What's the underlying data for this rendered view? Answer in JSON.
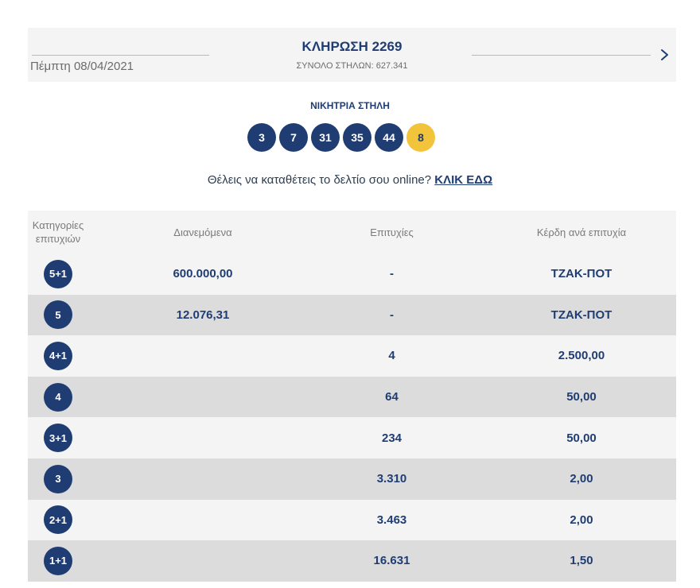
{
  "header": {
    "date": "Πέμπτη 08/04/2021",
    "title": "ΚΛΗΡΩΣΗ 2269",
    "subtitle": "ΣΥΝΟΛΟ ΣΤΗΛΩΝ: 627.341",
    "next_icon": "chevron-right-icon"
  },
  "winning": {
    "label": "ΝΙΚΗΤΡΙΑ ΣΤΗΛΗ",
    "numbers": [
      "3",
      "7",
      "31",
      "35",
      "44"
    ],
    "joker": "8"
  },
  "cta": {
    "text": "Θέλεις να καταθέτεις το δελτίο σου online?",
    "link": "ΚΛΙΚ ΕΔΩ"
  },
  "table": {
    "headers": {
      "category": "Κατηγορίες επιτυχιών",
      "distributed": "Διανεμόμενα",
      "winners": "Επιτυχίες",
      "prize": "Κέρδη ανά επιτυχία"
    },
    "rows": [
      {
        "category": "5+1",
        "distributed": "600.000,00",
        "winners": "-",
        "prize": "ΤΖΑΚ-ΠΟΤ"
      },
      {
        "category": "5",
        "distributed": "12.076,31",
        "winners": "-",
        "prize": "ΤΖΑΚ-ΠΟΤ"
      },
      {
        "category": "4+1",
        "distributed": "",
        "winners": "4",
        "prize": "2.500,00"
      },
      {
        "category": "4",
        "distributed": "",
        "winners": "64",
        "prize": "50,00"
      },
      {
        "category": "3+1",
        "distributed": "",
        "winners": "234",
        "prize": "50,00"
      },
      {
        "category": "3",
        "distributed": "",
        "winners": "3.310",
        "prize": "2,00"
      },
      {
        "category": "2+1",
        "distributed": "",
        "winners": "3.463",
        "prize": "2,00"
      },
      {
        "category": "1+1",
        "distributed": "",
        "winners": "16.631",
        "prize": "1,50"
      }
    ]
  },
  "colors": {
    "primary": "#1f3d73",
    "joker": "#f2c43c",
    "row_light": "#f4f4f4",
    "row_dark": "#dcdcdc"
  }
}
